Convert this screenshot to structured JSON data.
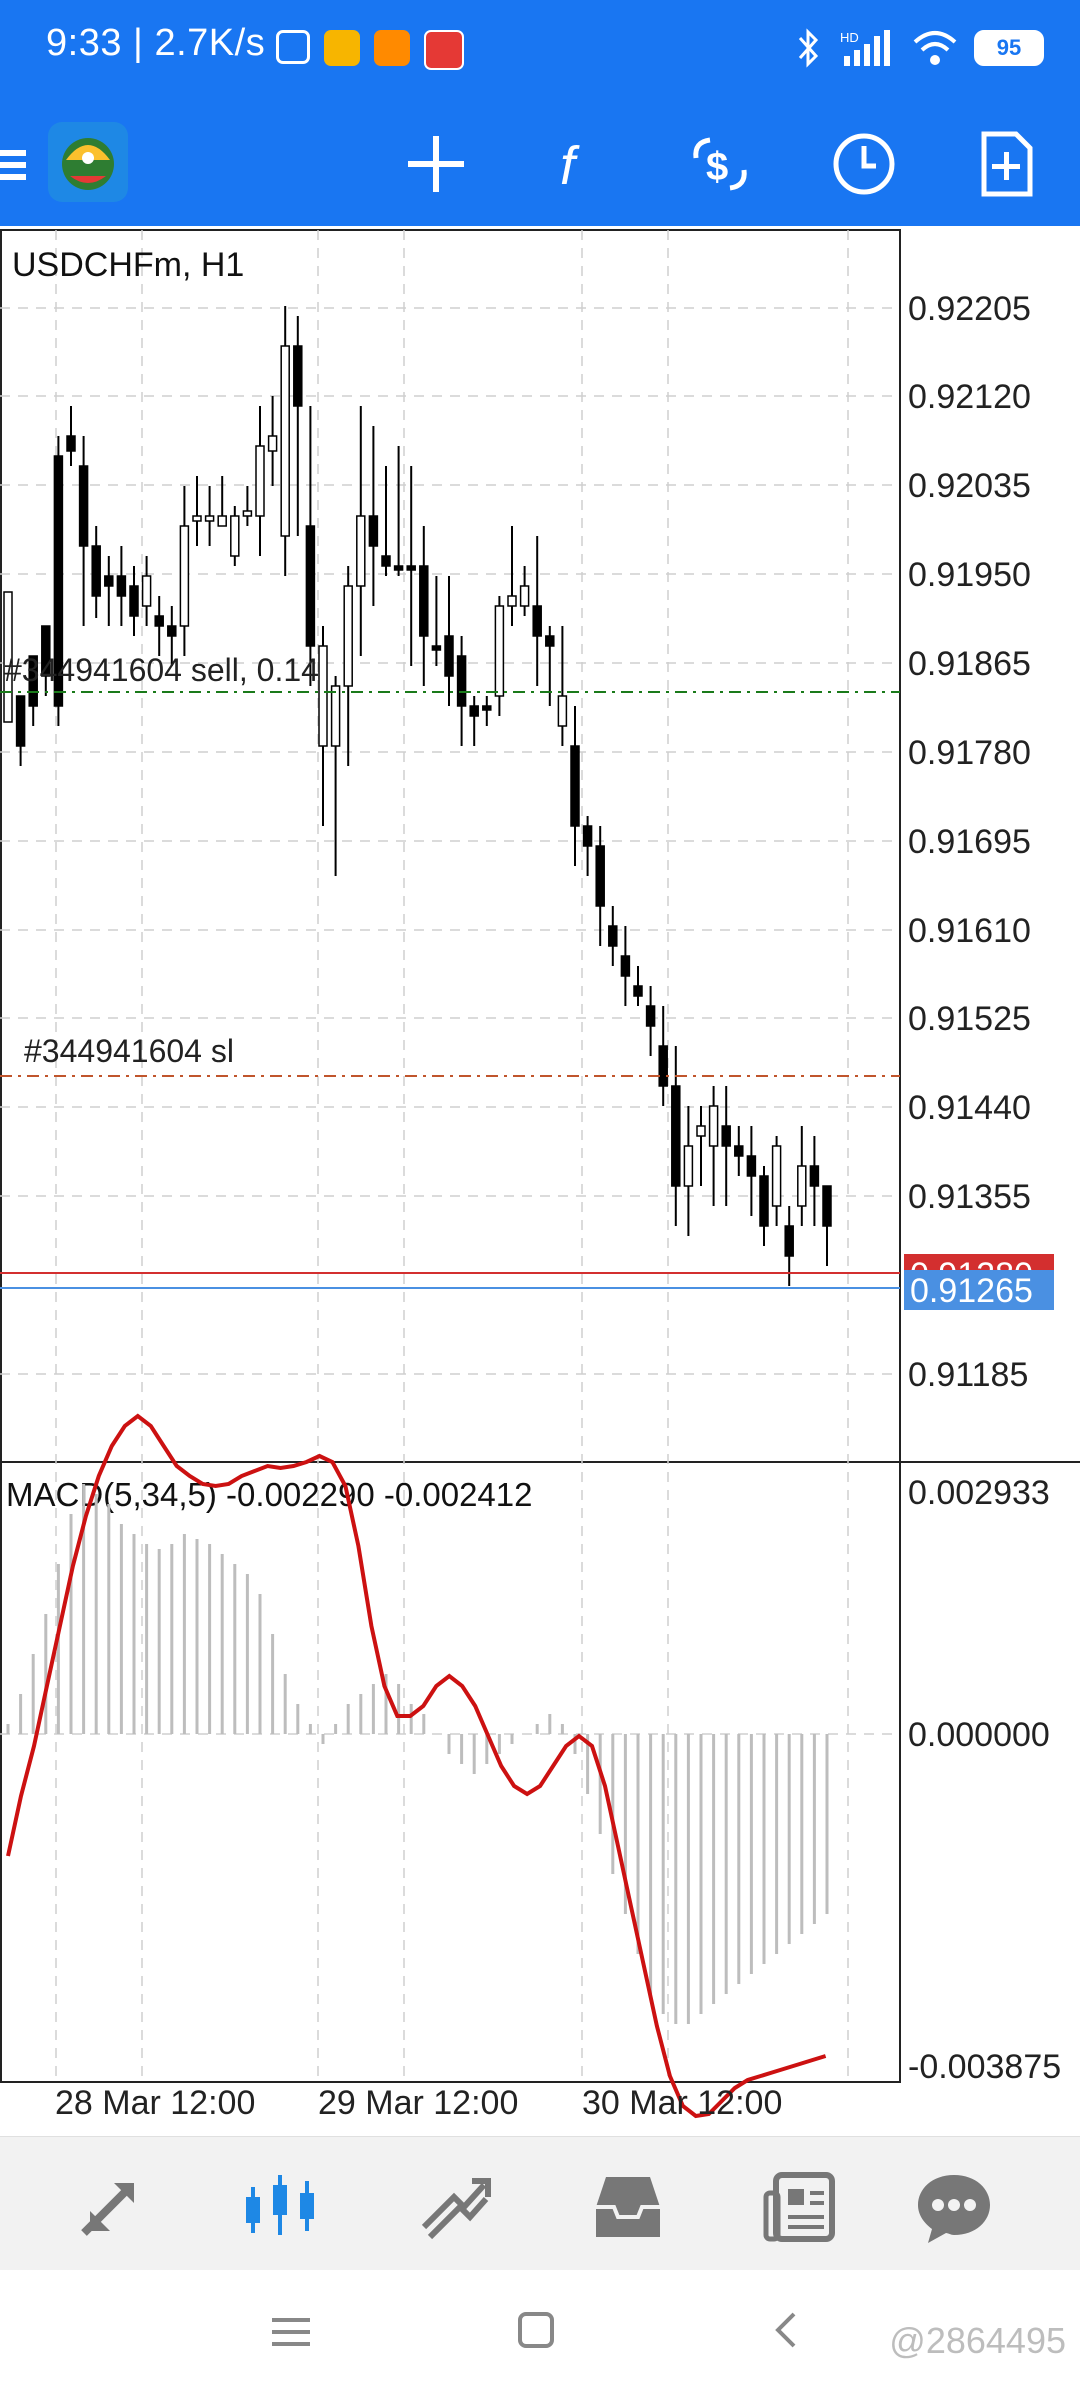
{
  "status_bar": {
    "time": "9:33",
    "speed": "2.7K/s",
    "battery": "95",
    "icons": [
      "nfc-icon",
      "mail-app-icon",
      "app-icon",
      "toutiao-icon",
      "bluetooth-icon",
      "signal-icon",
      "wifi-icon",
      "battery-icon"
    ]
  },
  "toolbar": {
    "icons": [
      "menu-icon",
      "metatrader-logo",
      "crosshair-icon",
      "indicators-icon",
      "symbols-icon",
      "timeframe-icon",
      "new-order-icon"
    ]
  },
  "chart": {
    "symbol_label": "USDCHFm, H1",
    "order_line_label": "#344941604 sell, 0.14",
    "sl_line_label": "#344941604 sl",
    "price_ticks": [
      "0.92205",
      "0.92120",
      "0.92035",
      "0.91950",
      "0.91865",
      "0.91780",
      "0.91695",
      "0.91610",
      "0.91525",
      "0.91440",
      "0.91355",
      "0.91185"
    ],
    "ask_price": "0.91280",
    "bid_price": "0.91265",
    "macd_label": "MACD(5,34,5) -0.002290 -0.002412",
    "macd_ticks": [
      "0.002933",
      "0.000000",
      "-0.003875"
    ],
    "time_labels": [
      "28 Mar 12:00",
      "29 Mar 12:00",
      "30 Mar 12:00"
    ],
    "colors": {
      "bull_body": "#ffffff",
      "bear_body": "#000000",
      "order_line": "#1a7a1a",
      "sl_line": "#c0552c",
      "ask_line": "#d32f2f",
      "bid_line": "#4a90e2",
      "macd_signal": "#cc1111",
      "macd_hist": "#bdbdbd"
    }
  },
  "bottom_nav": {
    "items": [
      "quotes-icon",
      "chart-icon",
      "trade-icon",
      "history-icon",
      "news-icon",
      "chat-icon"
    ],
    "active": "chart-icon"
  },
  "watermark": "@2864495"
}
